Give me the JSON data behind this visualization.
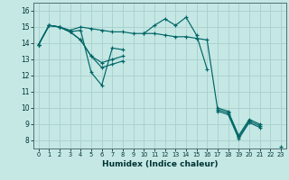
{
  "xlabel": "Humidex (Indice chaleur)",
  "xlim": [
    -0.5,
    23.5
  ],
  "ylim": [
    7.5,
    16.5
  ],
  "yticks": [
    8,
    9,
    10,
    11,
    12,
    13,
    14,
    15,
    16
  ],
  "xticks": [
    0,
    1,
    2,
    3,
    4,
    5,
    6,
    7,
    8,
    9,
    10,
    11,
    12,
    13,
    14,
    15,
    16,
    17,
    18,
    19,
    20,
    21,
    22,
    23
  ],
  "bg_color": "#c5e8e5",
  "grid_major_color": "#a8d0cc",
  "grid_minor_color": "#b8dcd8",
  "line_color": "#006666",
  "series": [
    [
      13.9,
      15.1,
      15.0,
      14.7,
      14.8,
      12.2,
      11.4,
      13.7,
      13.6,
      null,
      14.6,
      15.1,
      15.5,
      15.1,
      15.6,
      14.5,
      12.4,
      null,
      null,
      null,
      null,
      null,
      null,
      null
    ],
    [
      13.9,
      15.1,
      15.0,
      14.7,
      14.2,
      13.2,
      12.8,
      13.0,
      13.2,
      null,
      null,
      null,
      null,
      null,
      null,
      null,
      null,
      10.0,
      9.8,
      8.3,
      9.3,
      9.0,
      null,
      7.6
    ],
    [
      13.9,
      15.1,
      15.0,
      14.7,
      14.2,
      13.2,
      12.5,
      12.7,
      12.9,
      null,
      null,
      null,
      null,
      null,
      null,
      null,
      null,
      9.8,
      9.6,
      8.1,
      9.1,
      8.8,
      null,
      7.4
    ],
    [
      13.9,
      15.1,
      15.0,
      14.8,
      15.0,
      14.9,
      14.8,
      14.7,
      14.7,
      14.6,
      14.6,
      14.6,
      14.5,
      14.4,
      14.4,
      14.3,
      14.2,
      9.9,
      9.7,
      8.2,
      9.2,
      8.9,
      null,
      7.5
    ]
  ]
}
